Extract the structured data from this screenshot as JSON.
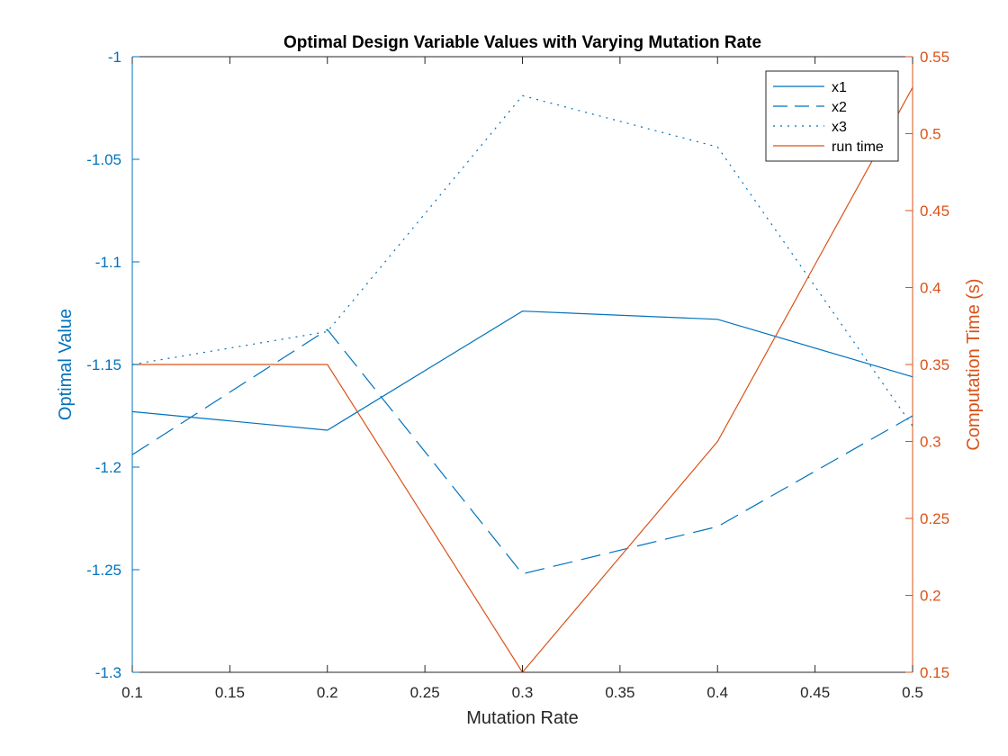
{
  "chart_data": {
    "type": "line",
    "title": "Optimal Design Variable Values with Varying Mutation Rate",
    "xlabel": "Mutation Rate",
    "ylabel_left": "Optimal Value",
    "ylabel_right": "Computation Time (s)",
    "xlim": [
      0.1,
      0.5
    ],
    "ylim_left": [
      -1.3,
      -1.0
    ],
    "ylim_right": [
      0.15,
      0.55
    ],
    "x_ticks": [
      "0.1",
      "0.15",
      "0.2",
      "0.25",
      "0.3",
      "0.35",
      "0.4",
      "0.45",
      "0.5"
    ],
    "y_left_ticks": [
      "-1",
      "-1.05",
      "-1.1",
      "-1.15",
      "-1.2",
      "-1.25",
      "-1.3"
    ],
    "y_right_ticks": [
      "0.55",
      "0.5",
      "0.45",
      "0.4",
      "0.35",
      "0.3",
      "0.25",
      "0.2",
      "0.15"
    ],
    "grid": false,
    "legend_position": "top-right",
    "x": [
      0.1,
      0.2,
      0.3,
      0.4,
      0.5
    ],
    "series": [
      {
        "name": "x1",
        "axis": "left",
        "style": "solid",
        "color": "#0072BD",
        "values": [
          -1.173,
          -1.182,
          -1.124,
          -1.128,
          -1.156
        ]
      },
      {
        "name": "x2",
        "axis": "left",
        "style": "dashed",
        "color": "#0072BD",
        "values": [
          -1.194,
          -1.133,
          -1.252,
          -1.229,
          -1.175
        ]
      },
      {
        "name": "x3",
        "axis": "left",
        "style": "dotted",
        "color": "#0072BD",
        "values": [
          -1.15,
          -1.134,
          -1.019,
          -1.044,
          -1.18
        ]
      },
      {
        "name": "run time",
        "axis": "right",
        "style": "solid",
        "color": "#D95319",
        "values": [
          0.35,
          0.35,
          0.15,
          0.3,
          0.53
        ]
      }
    ],
    "colors": {
      "left_axis": "#0072BD",
      "right_axis": "#D95319",
      "text": "#262626"
    }
  }
}
